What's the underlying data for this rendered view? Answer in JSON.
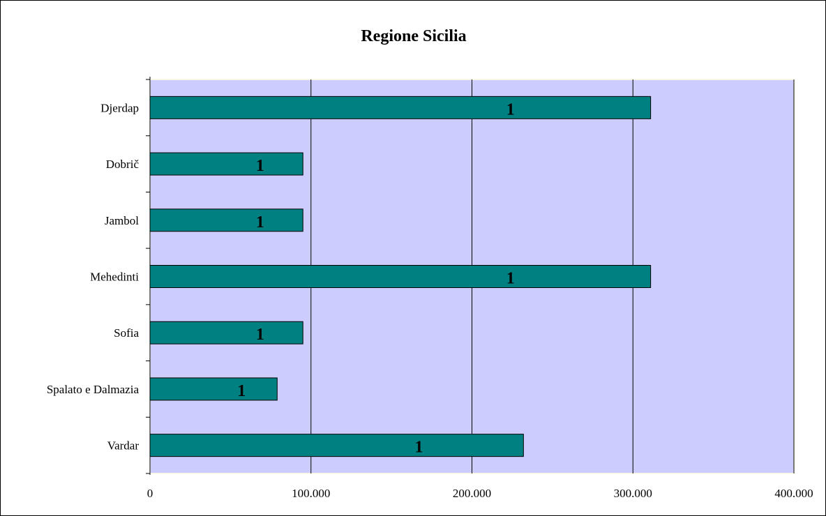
{
  "chart_data": {
    "type": "bar",
    "orientation": "horizontal",
    "title": "Regione Sicilia",
    "xlabel": "",
    "ylabel": "",
    "categories": [
      "Djerdap",
      "Dobrič",
      "Jambol",
      "Mehedinti",
      "Sofia",
      "Spalato e Dalmazia",
      "Vardar"
    ],
    "values": [
      311000,
      95000,
      95000,
      311000,
      95000,
      79000,
      232000
    ],
    "data_labels": [
      "1",
      "1",
      "1",
      "1",
      "1",
      "1",
      "1"
    ],
    "xlim": [
      0,
      400000
    ],
    "xticks": [
      0,
      100000,
      200000,
      300000,
      400000
    ],
    "xtick_labels": [
      "0",
      "100.000",
      "200.000",
      "300.000",
      "400.000"
    ],
    "grid": "vertical",
    "legend": "none",
    "colors": {
      "plot_background": "#CCCCFF",
      "bar_fill": "#008080",
      "bar_stroke": "#000000",
      "gridline": "#000000",
      "plot_border": "#FFFFE0"
    }
  }
}
